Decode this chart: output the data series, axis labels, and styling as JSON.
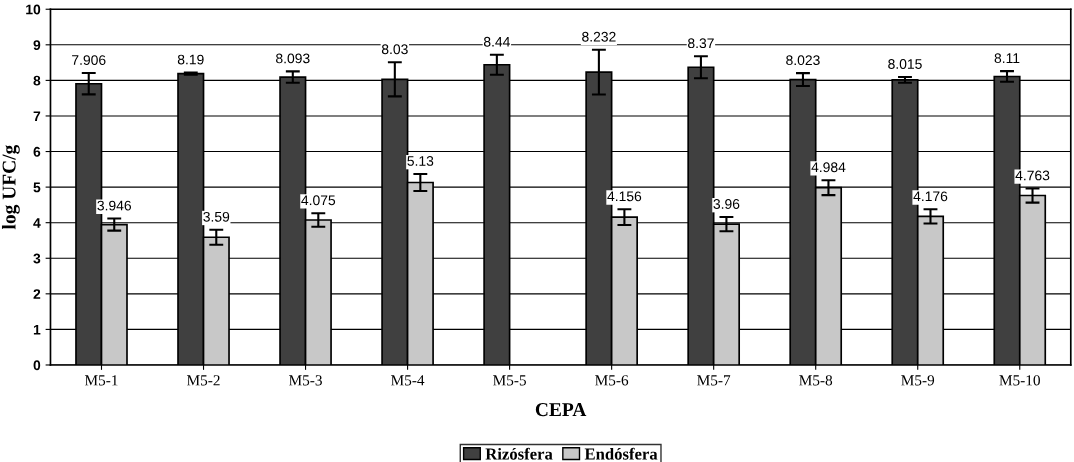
{
  "chart_data": {
    "type": "bar",
    "xlabel": "CEPA",
    "ylabel": "log UFC/g",
    "categories": [
      "M5-1",
      "M5-2",
      "M5-3",
      "M5-4",
      "M5-5",
      "M5-6",
      "M5-7",
      "M5-8",
      "M5-9",
      "M5-10"
    ],
    "series": [
      {
        "name": "Rizósfera",
        "color": "#404040",
        "values": [
          7.906,
          8.19,
          8.093,
          8.03,
          8.44,
          8.232,
          8.37,
          8.023,
          8.015,
          8.11
        ],
        "errors": [
          0.3,
          0.03,
          0.16,
          0.48,
          0.28,
          0.63,
          0.31,
          0.18,
          0.08,
          0.15
        ]
      },
      {
        "name": "Endósfera",
        "color": "#c8c8c8",
        "values": [
          3.946,
          3.59,
          4.075,
          5.13,
          null,
          4.156,
          3.96,
          4.984,
          4.176,
          4.763
        ],
        "errors": [
          0.17,
          0.21,
          0.19,
          0.24,
          null,
          0.22,
          0.2,
          0.21,
          0.2,
          0.2
        ]
      }
    ],
    "ylim": [
      0,
      10
    ],
    "yticks": [
      0,
      1,
      2,
      3,
      4,
      5,
      6,
      7,
      8,
      9,
      10
    ],
    "grid": "y",
    "legend": "bottom",
    "data_labels": true
  }
}
